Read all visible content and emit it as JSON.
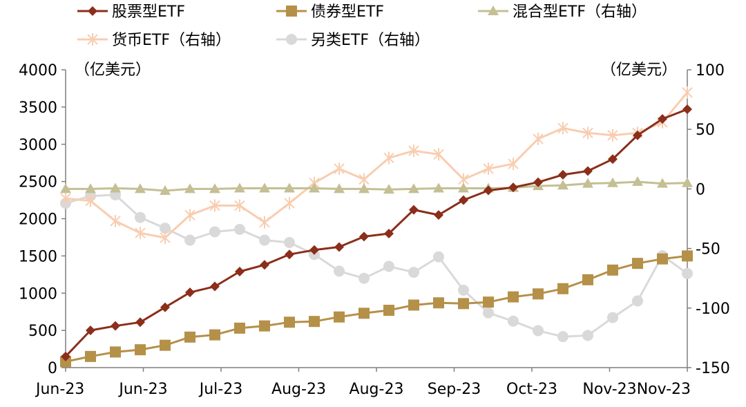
{
  "chart_data": {
    "type": "line",
    "left_axis_unit": "（亿美元）",
    "right_axis_unit": "（亿美元）",
    "x_tick_labels": [
      "Jun-23",
      "Jun-23",
      "Jul-23",
      "Aug-23",
      "Aug-23",
      "Sep-23",
      "Oct-23",
      "Nov-23",
      "Nov-23"
    ],
    "left_ylim": [
      0,
      4000
    ],
    "left_yticks": [
      0,
      500,
      1000,
      1500,
      2000,
      2500,
      3000,
      3500,
      4000
    ],
    "right_ylim": [
      -150,
      100
    ],
    "right_yticks": [
      -150,
      -100,
      -50,
      0,
      50,
      100
    ],
    "point_count": 26,
    "series": [
      {
        "name": "股票型ETF",
        "axis": "left",
        "color": "#8B2E1A",
        "marker": "diamond",
        "values": [
          150,
          500,
          560,
          610,
          810,
          1010,
          1090,
          1290,
          1380,
          1520,
          1580,
          1620,
          1760,
          1800,
          2120,
          2050,
          2250,
          2380,
          2420,
          2490,
          2590,
          2640,
          2800,
          3120,
          3340,
          3470
        ]
      },
      {
        "name": "债券型ETF",
        "axis": "left",
        "color": "#B59048",
        "marker": "square",
        "values": [
          80,
          150,
          210,
          240,
          300,
          410,
          440,
          530,
          560,
          610,
          620,
          680,
          730,
          770,
          840,
          870,
          860,
          880,
          950,
          990,
          1060,
          1180,
          1310,
          1400,
          1460,
          1500
        ]
      },
      {
        "name": "混合型ETF（右轴）",
        "axis": "right",
        "color": "#C4BF94",
        "marker": "triangle",
        "values": [
          0,
          0,
          0.5,
          0,
          -1.5,
          0,
          0,
          0.5,
          0.5,
          0.5,
          0.5,
          0,
          0,
          -0.5,
          0,
          0.5,
          0.5,
          0.5,
          1,
          2.5,
          3,
          4.5,
          5,
          6,
          4.5,
          5
        ]
      },
      {
        "name": "货币ETF（右轴）",
        "axis": "right",
        "color": "#F8CDB0",
        "marker": "asterisk",
        "values": [
          -8,
          -10,
          -27,
          -37,
          -41,
          -22,
          -14,
          -14,
          -28,
          -12,
          5,
          17,
          8,
          26,
          32,
          29,
          8,
          17,
          21,
          42,
          51,
          47,
          45,
          47,
          56,
          81
        ]
      },
      {
        "name": "另类ETF（右轴）",
        "axis": "right",
        "color": "#D9D9D9",
        "marker": "circle",
        "values": [
          -12,
          -6,
          -5,
          -24,
          -33,
          -43,
          -36,
          -34,
          -43,
          -45,
          -55,
          -69,
          -75,
          -65,
          -70,
          -57,
          -85,
          -104,
          -111,
          -119,
          -124,
          -123,
          -108,
          -94,
          -56,
          -71
        ]
      }
    ],
    "legend_placement": "top-left",
    "grid": false
  }
}
